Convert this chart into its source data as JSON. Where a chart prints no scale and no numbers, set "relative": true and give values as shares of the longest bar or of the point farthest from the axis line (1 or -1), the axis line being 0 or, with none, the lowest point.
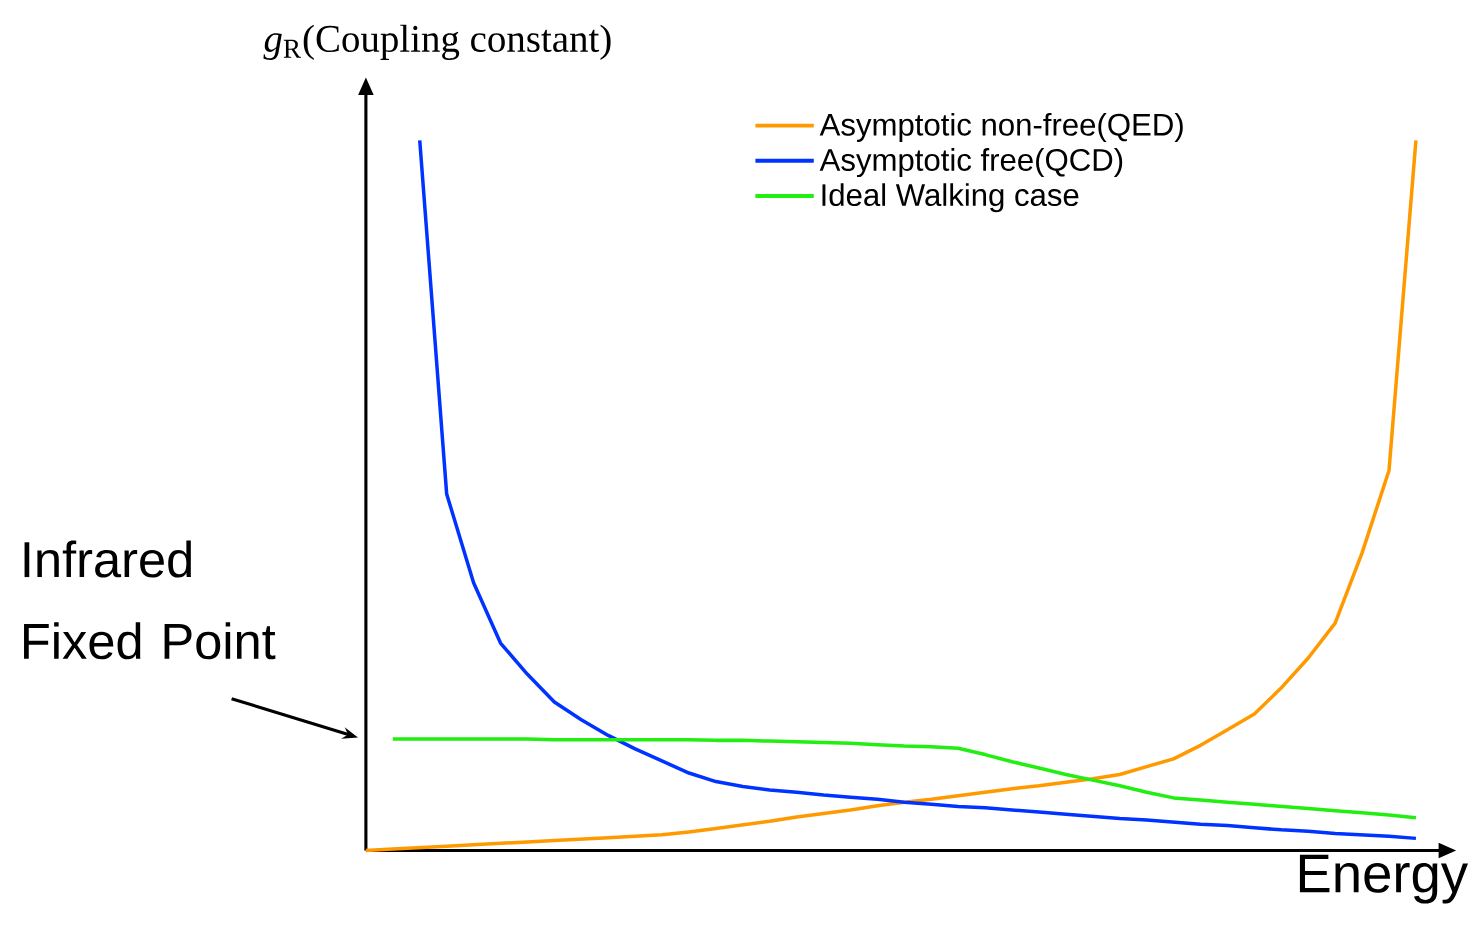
{
  "chart_data": {
    "type": "line",
    "relative": true,
    "legend": "top right",
    "marker": "none",
    "line_style": "solid",
    "ylabel": "*g*$_{R}$(Coupling constant)",
    "xlabel": "Energy",
    "annotations": [
      "Infrared Fixed Point"
    ],
    "categories": [
      null,
      null,
      null,
      null,
      null,
      null,
      null,
      null,
      null,
      null,
      null,
      null,
      null,
      null,
      null,
      null,
      null,
      null,
      null,
      null,
      null,
      null,
      null,
      null,
      null,
      null,
      null,
      null,
      null,
      null,
      null,
      null,
      null,
      null,
      null,
      null,
      null,
      null,
      null,
      null
    ],
    "series": [
      {
        "name": "Asymptotic non-free(QED)",
        "color": "#ff9900",
        "values": [
          0,
          0.002,
          0.004,
          0.006,
          0.008,
          0.01,
          0.012,
          0.014,
          0.016,
          0.018,
          0.02,
          0.022,
          0.026,
          0.031,
          0.036,
          0.041,
          0.047,
          0.052,
          0.057,
          0.063,
          0.068,
          0.072,
          0.077,
          0.082,
          0.087,
          0.091,
          0.096,
          0.101,
          0.107,
          0.118,
          0.129,
          0.148,
          0.17,
          0.192,
          0.229,
          0.271,
          0.32,
          0.419,
          0.535,
          1.0
        ]
      },
      {
        "name": "Asymptotic free(QCD)",
        "color": "#0033ff",
        "values": [
          null,
          null,
          1.0,
          0.502,
          0.377,
          0.292,
          0.248,
          0.209,
          0.184,
          0.162,
          0.143,
          0.126,
          0.109,
          0.097,
          0.09,
          0.085,
          0.082,
          0.078,
          0.075,
          0.072,
          0.068,
          0.065,
          0.062,
          0.06,
          0.057,
          0.054,
          0.051,
          0.048,
          0.045,
          0.043,
          0.04,
          0.037,
          0.035,
          0.032,
          0.029,
          0.027,
          0.024,
          0.022,
          0.02,
          0.017
        ]
      },
      {
        "name": "Ideal Walking case",
        "color": "#22ee11",
        "values": [
          null,
          0.157,
          0.157,
          0.157,
          0.157,
          0.157,
          0.157,
          0.156,
          0.156,
          0.156,
          0.156,
          0.156,
          0.156,
          0.155,
          0.155,
          0.154,
          0.153,
          0.152,
          0.151,
          0.149,
          0.147,
          0.146,
          0.144,
          0.135,
          0.125,
          0.116,
          0.107,
          0.099,
          0.091,
          0.082,
          0.074,
          0.071,
          0.068,
          0.065,
          0.062,
          0.059,
          0.056,
          0.053,
          0.05,
          0.046
        ]
      }
    ]
  }
}
